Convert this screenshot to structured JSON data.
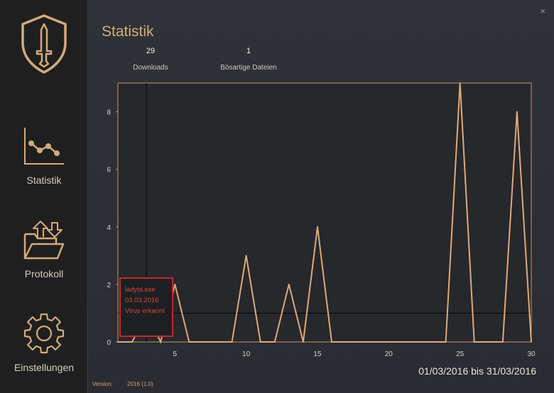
{
  "sidebar": {
    "items": [
      {
        "label": "Statistik",
        "icon": "chart-line-icon"
      },
      {
        "label": "Protokoll",
        "icon": "folder-transfer-icon"
      },
      {
        "label": "Einstellungen",
        "icon": "gear-icon"
      }
    ],
    "logo_icon": "shield-sword-icon"
  },
  "header": {
    "title": "Statistik",
    "close_icon": "close-icon",
    "close_symbol": "×"
  },
  "stats": {
    "downloads_value": "29",
    "downloads_label": "Downloads",
    "malicious_value": "1",
    "malicious_label": "Bösartige Dateien"
  },
  "tooltip": {
    "filename": "ladybi.exe",
    "date": "03.03.2016",
    "status": "Virus erkannt"
  },
  "footer": {
    "date_range": "01/03/2016 bis 31/03/2016",
    "version_label": "Version:",
    "version_value": "2016 (1.0)"
  },
  "colors": {
    "accent": "#d4aa7d",
    "line": "#e1a877",
    "tooltip_border": "#c02a2a",
    "tooltip_text": "#d6453f"
  },
  "chart_data": {
    "type": "line",
    "x": [
      1,
      2,
      3,
      4,
      5,
      6,
      7,
      8,
      9,
      10,
      11,
      12,
      13,
      14,
      15,
      16,
      17,
      18,
      19,
      20,
      21,
      22,
      23,
      24,
      25,
      26,
      27,
      28,
      29,
      30
    ],
    "values": [
      0,
      0,
      1,
      0,
      2,
      0,
      0,
      0,
      0,
      3,
      0,
      0,
      2,
      0,
      4,
      0,
      0,
      0,
      0,
      0,
      0,
      0,
      0,
      0,
      9,
      0,
      0,
      0,
      8,
      0
    ],
    "xlim": [
      1,
      30
    ],
    "ylim": [
      0,
      9
    ],
    "xticks": [
      5,
      10,
      15,
      20,
      25,
      30
    ],
    "yticks": [
      0,
      2,
      4,
      6,
      8
    ],
    "crosshair": {
      "x": 3,
      "y": 1
    },
    "grid": false
  }
}
